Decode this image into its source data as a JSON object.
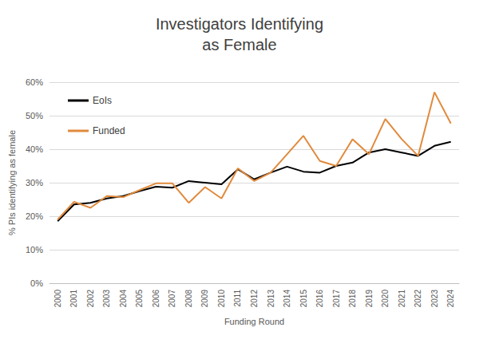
{
  "chart_data": {
    "type": "line",
    "title": "Investigators Identifying\nas Female",
    "x_label": "Funding Round",
    "y_label": "% PIs identifying as female",
    "categories": [
      "2000",
      "2001",
      "2002",
      "2003",
      "2004",
      "2005",
      "2006",
      "2007",
      "2008",
      "2009",
      "2010",
      "2011",
      "2012",
      "2013",
      "2014",
      "2015",
      "2016",
      "2017",
      "2018",
      "2019",
      "2020",
      "2021",
      "2022",
      "2023",
      "2024"
    ],
    "series": [
      {
        "name": "EoIs",
        "color": "#000000",
        "values": [
          18.5,
          23.5,
          24,
          25.3,
          26,
          27.5,
          28.8,
          28.5,
          30.5,
          30,
          29.5,
          34,
          31,
          33,
          34.8,
          33.3,
          33,
          35,
          36,
          39,
          40,
          39,
          38,
          41,
          42.2
        ]
      },
      {
        "name": "Funded",
        "color": "#E08A3C",
        "values": [
          19,
          24.3,
          22.5,
          26,
          25.7,
          27.8,
          29.8,
          29.8,
          24,
          28.7,
          25.3,
          34.3,
          30.5,
          33,
          38.5,
          44,
          36.5,
          35,
          43,
          38.5,
          49,
          43,
          38,
          57,
          47.7
        ]
      }
    ],
    "ylim": [
      0,
      60
    ],
    "yticks": [
      {
        "value": 0,
        "label": "0%"
      },
      {
        "value": 10,
        "label": "10%"
      },
      {
        "value": 20,
        "label": "20%"
      },
      {
        "value": 30,
        "label": "30%"
      },
      {
        "value": 40,
        "label": "40%"
      },
      {
        "value": 50,
        "label": "50%"
      },
      {
        "value": 60,
        "label": "60%"
      }
    ],
    "grid": true,
    "legend": "upper left"
  }
}
